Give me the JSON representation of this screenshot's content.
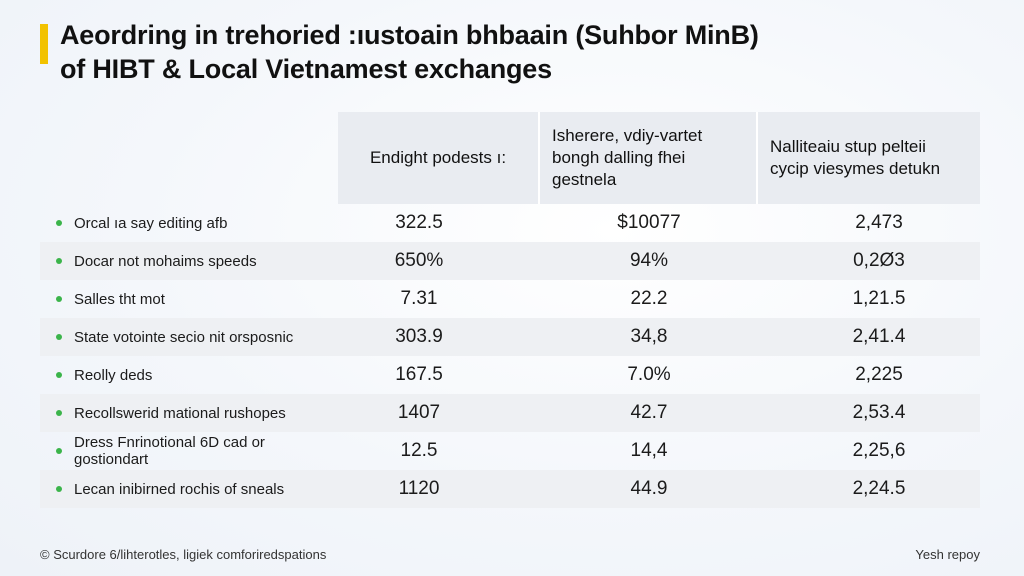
{
  "title_line1": "Aeordring in trehoried :ıustoain bhbaain (Suhbor MinB)",
  "title_line2": "of HIBT & Local Vietnamest exchanges",
  "colors": {
    "accent": "#f2c200",
    "bullet": "#3bb44a",
    "header_bg": "#e9ecf1",
    "row_alt": "#eef0f3"
  },
  "chart_data": {
    "type": "table",
    "columns": [
      "",
      "Endight podests ı:",
      "Isherere, vdiy-vartet bongh dalling fhei gestnela",
      "Nalliteaiu stup pelteii cycip viesymes detukn"
    ],
    "rows": [
      {
        "label": "Orcal ıa say editing afb",
        "values": [
          "322.5",
          "$10077",
          "2,473"
        ]
      },
      {
        "label": "Docar not mohaims speeds",
        "values": [
          "650%",
          "94%",
          "0,2Ø3"
        ]
      },
      {
        "label": "Salles tht mot",
        "values": [
          "7.31",
          "22.2",
          "1,21.5"
        ]
      },
      {
        "label": "State votointe secio nit orsposnic",
        "values": [
          "303.9",
          "34,8",
          "2,41.4"
        ]
      },
      {
        "label": "Reolly deds",
        "values": [
          "167.5",
          "7.0%",
          "2,225"
        ]
      },
      {
        "label": "Recollswerid mational rushopes",
        "values": [
          "1407",
          "42.7",
          "2,53.4"
        ]
      },
      {
        "label": "Dress Fnrinotional 6D cad or gostiondart",
        "values": [
          "12.5",
          "14,4",
          "2,25,6"
        ]
      },
      {
        "label": "Lecan inibirned rochis of sneals",
        "values": [
          "1120",
          "44.9",
          "2,24.5"
        ]
      }
    ]
  },
  "footer": {
    "source": "© Scurdore 6/lihterotles, ligiek comforiredspations",
    "note": "Yesh repoy"
  }
}
